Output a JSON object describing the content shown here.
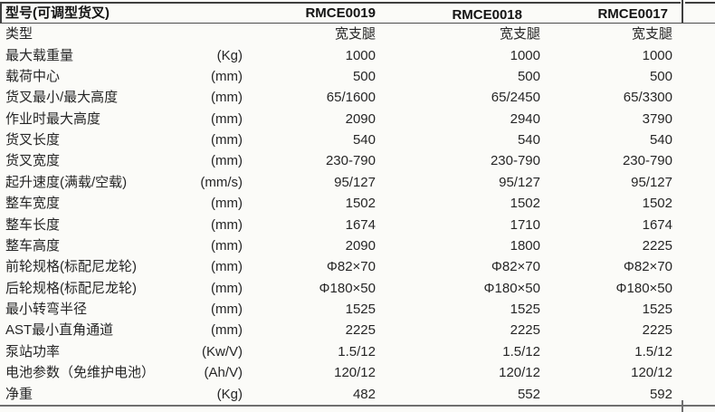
{
  "table": {
    "header": {
      "title": "型号(可调型货叉)",
      "models": [
        "RMCE0019",
        "RMCE0018",
        "RMCE0017"
      ]
    },
    "rows": [
      {
        "label": "类型",
        "unit": "",
        "v": [
          "宽支腿",
          "宽支腿",
          "宽支腿"
        ]
      },
      {
        "label": "最大载重量",
        "unit": "(Kg)",
        "v": [
          "1000",
          "1000",
          "1000"
        ]
      },
      {
        "label": "载荷中心",
        "unit": "(mm)",
        "v": [
          "500",
          "500",
          "500"
        ]
      },
      {
        "label": "货叉最小/最大高度",
        "unit": "(mm)",
        "v": [
          "65/1600",
          "65/2450",
          "65/3300"
        ]
      },
      {
        "label": "作业时最大高度",
        "unit": "(mm)",
        "v": [
          "2090",
          "2940",
          "3790"
        ]
      },
      {
        "label": "货叉长度",
        "unit": "(mm)",
        "v": [
          "540",
          "540",
          "540"
        ]
      },
      {
        "label": "货叉宽度",
        "unit": "(mm)",
        "v": [
          "230-790",
          "230-790",
          "230-790"
        ]
      },
      {
        "label": "起升速度(满载/空载)",
        "unit": "(mm/s)",
        "v": [
          "95/127",
          "95/127",
          "95/127"
        ]
      },
      {
        "label": "整车宽度",
        "unit": "(mm)",
        "v": [
          "1502",
          "1502",
          "1502"
        ]
      },
      {
        "label": "整车长度",
        "unit": "(mm)",
        "v": [
          "1674",
          "1710",
          "1674"
        ]
      },
      {
        "label": "整车高度",
        "unit": "(mm)",
        "v": [
          "2090",
          "1800",
          "2225"
        ]
      },
      {
        "label": "前轮规格(标配尼龙轮)",
        "unit": "(mm)",
        "v": [
          "Φ82×70",
          "Φ82×70",
          "Φ82×70"
        ]
      },
      {
        "label": "后轮规格(标配尼龙轮)",
        "unit": "(mm)",
        "v": [
          "Φ180×50",
          "Φ180×50",
          "Φ180×50"
        ]
      },
      {
        "label": "最小转弯半径",
        "unit": "(mm)",
        "v": [
          "1525",
          "1525",
          "1525"
        ]
      },
      {
        "label": "AST最小直角通道",
        "unit": "(mm)",
        "v": [
          "2225",
          "2225",
          "2225"
        ]
      },
      {
        "label": "泵站功率",
        "unit": "(Kw/V)",
        "v": [
          "1.5/12",
          "1.5/12",
          "1.5/12"
        ]
      },
      {
        "label": "电池参数（免维护电池）",
        "unit": "(Ah/V)",
        "v": [
          "120/12",
          "120/12",
          "120/12"
        ]
      },
      {
        "label": "净重",
        "unit": "(Kg)",
        "v": [
          "482",
          "552",
          "592"
        ]
      }
    ]
  },
  "colors": {
    "background": "#fbfbf8",
    "text": "#262626",
    "header_text": "#141414",
    "top_border": "#3f3f3f",
    "header_rule": "#4d4d4d",
    "bottom_rule": "#6f6f6f"
  }
}
